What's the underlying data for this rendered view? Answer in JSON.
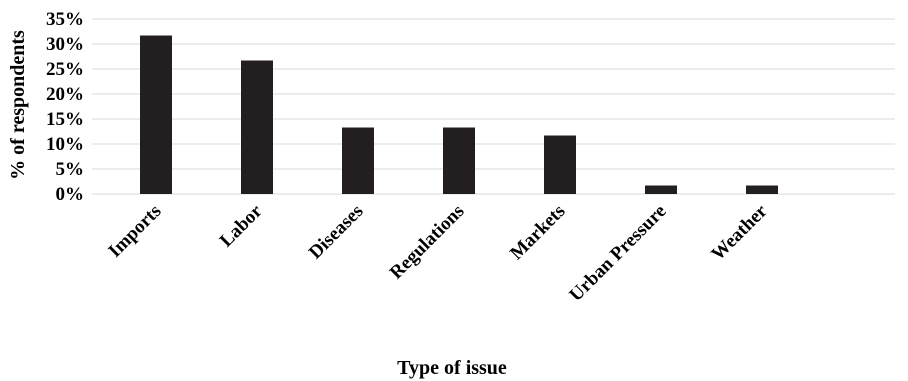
{
  "chart_data": {
    "type": "bar",
    "categories": [
      "Imports",
      "Labor",
      "Diseases",
      "Regulations",
      "Markets",
      "Urban Pressure",
      "Weather"
    ],
    "values": [
      31.7,
      26.7,
      13.3,
      13.3,
      11.7,
      1.7,
      1.7
    ],
    "xlabel": "Type of issue",
    "ylabel": "% of respondents",
    "ylim": [
      0,
      35
    ],
    "yticks": [
      0,
      5,
      10,
      15,
      20,
      25,
      30,
      35
    ],
    "ytick_labels": [
      "0%",
      "5%",
      "10%",
      "15%",
      "20%",
      "25%",
      "30%",
      "35%"
    ],
    "grid": true,
    "legend": "none",
    "bar_color": "#231f20"
  }
}
